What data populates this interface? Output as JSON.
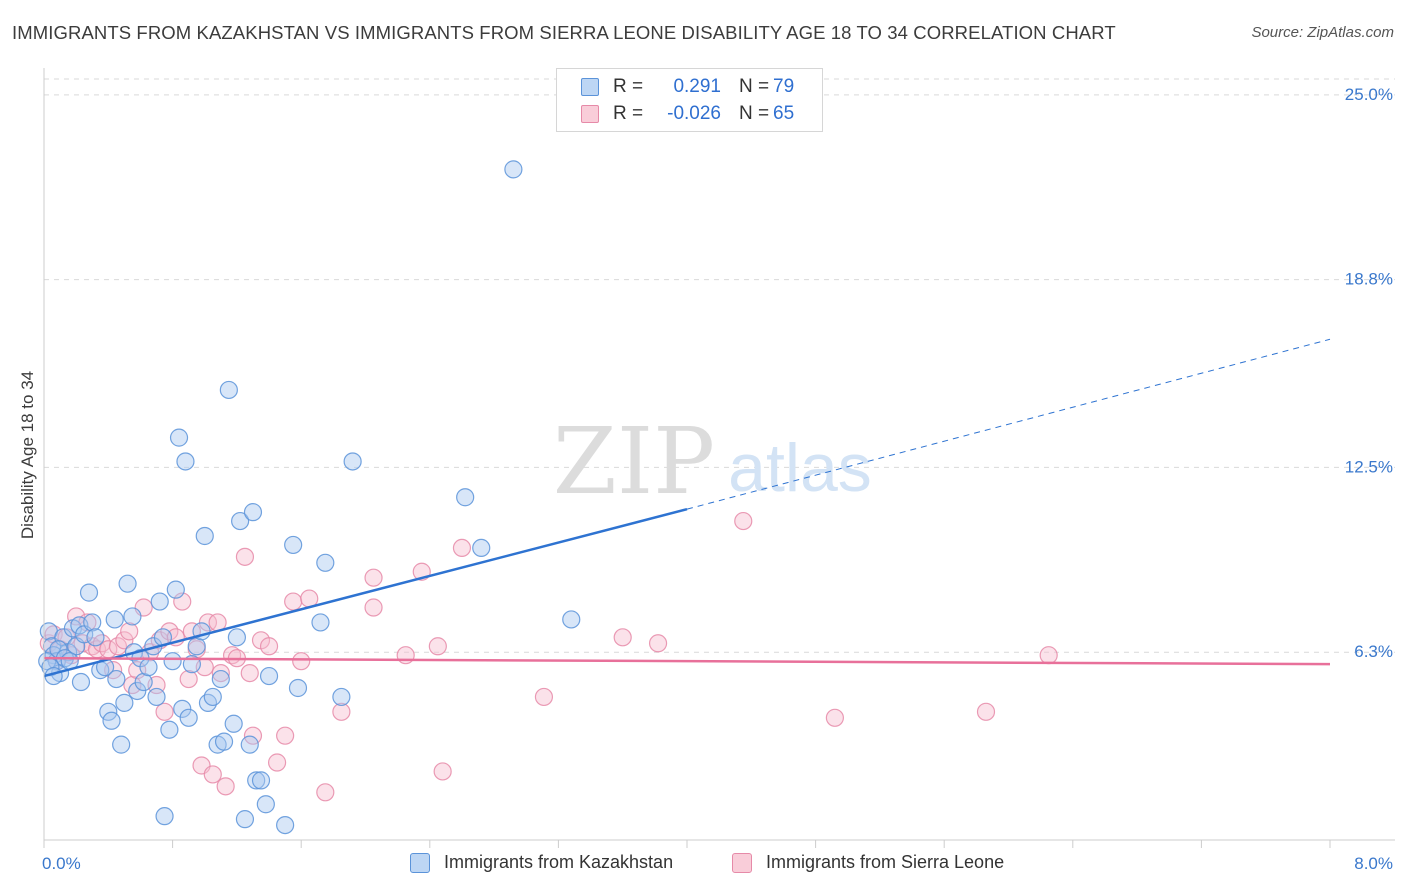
{
  "header": {
    "title": "IMMIGRANTS FROM KAZAKHSTAN VS IMMIGRANTS FROM SIERRA LEONE DISABILITY AGE 18 TO 34 CORRELATION CHART",
    "source": "Source: ZipAtlas.com"
  },
  "watermark": {
    "zip": "ZIP",
    "atlas": "atlas"
  },
  "legend_top": {
    "rows": [
      {
        "r_label": "R =",
        "r_value": "0.291",
        "n_label": "N =",
        "n_value": "79"
      },
      {
        "r_label": "R =",
        "r_value": "-0.026",
        "n_label": "N =",
        "n_value": "65"
      }
    ]
  },
  "legend_bottom": {
    "items": [
      "Immigrants from Kazakhstan",
      "Immigrants from Sierra Leone"
    ]
  },
  "colors": {
    "blue_fill": "#a9c8f0",
    "blue_stroke": "#5b93d9",
    "blue_line": "#2e73d1",
    "pink_fill": "#f6bfd0",
    "pink_stroke": "#e68aa8",
    "pink_line": "#e8709a",
    "tick_label": "#3a78cc",
    "grid": "#d9d9d9"
  },
  "chart_data": {
    "type": "scatter",
    "title": "IMMIGRANTS FROM KAZAKHSTAN VS IMMIGRANTS FROM SIERRA LEONE DISABILITY AGE 18 TO 34 CORRELATION CHART",
    "xlabel": "",
    "ylabel": "Disability Age 18 to 34",
    "xlim": [
      0,
      8
    ],
    "ylim": [
      0,
      25.7
    ],
    "x_tick_labels": [
      "0.0%",
      "8.0%"
    ],
    "y_ticks": [
      6.3,
      12.5,
      18.8,
      25.0
    ],
    "y_tick_labels": [
      "6.3%",
      "12.5%",
      "18.8%",
      "25.0%"
    ],
    "grid": true,
    "legend_position": "top-center",
    "series": [
      {
        "name": "Immigrants from Kazakhstan",
        "r": 0.291,
        "n": 79,
        "trend": {
          "x0": 0.0,
          "y0": 5.5,
          "x1": 4.0,
          "y1": 11.1,
          "dashed_to_x": 8.0,
          "dashed_to_y": 16.8
        },
        "points": [
          [
            0.03,
            7.0
          ],
          [
            0.05,
            6.5
          ],
          [
            0.06,
            6.2
          ],
          [
            0.08,
            6.0
          ],
          [
            0.1,
            5.6
          ],
          [
            0.12,
            6.8
          ],
          [
            0.15,
            6.3
          ],
          [
            0.18,
            7.1
          ],
          [
            0.2,
            6.5
          ],
          [
            0.22,
            7.2
          ],
          [
            0.25,
            6.9
          ],
          [
            0.23,
            5.3
          ],
          [
            0.28,
            8.3
          ],
          [
            0.3,
            7.3
          ],
          [
            0.32,
            6.8
          ],
          [
            0.35,
            5.7
          ],
          [
            0.38,
            5.8
          ],
          [
            0.4,
            4.3
          ],
          [
            0.42,
            4.0
          ],
          [
            0.44,
            7.4
          ],
          [
            0.45,
            5.4
          ],
          [
            0.48,
            3.2
          ],
          [
            0.5,
            4.6
          ],
          [
            0.52,
            8.6
          ],
          [
            0.55,
            7.5
          ],
          [
            0.56,
            6.3
          ],
          [
            0.58,
            5.0
          ],
          [
            0.6,
            6.1
          ],
          [
            0.62,
            5.3
          ],
          [
            0.65,
            5.8
          ],
          [
            0.68,
            6.5
          ],
          [
            0.7,
            4.8
          ],
          [
            0.72,
            8.0
          ],
          [
            0.74,
            6.8
          ],
          [
            0.75,
            0.8
          ],
          [
            0.78,
            3.7
          ],
          [
            0.8,
            6.0
          ],
          [
            0.82,
            8.4
          ],
          [
            0.84,
            13.5
          ],
          [
            0.86,
            4.4
          ],
          [
            0.88,
            12.7
          ],
          [
            0.9,
            4.1
          ],
          [
            0.92,
            5.9
          ],
          [
            0.95,
            6.5
          ],
          [
            0.98,
            7.0
          ],
          [
            1.0,
            10.2
          ],
          [
            1.02,
            4.6
          ],
          [
            1.05,
            4.8
          ],
          [
            1.08,
            3.2
          ],
          [
            1.1,
            5.4
          ],
          [
            1.12,
            3.3
          ],
          [
            1.15,
            15.1
          ],
          [
            1.18,
            3.9
          ],
          [
            1.2,
            6.8
          ],
          [
            1.22,
            10.7
          ],
          [
            1.25,
            0.7
          ],
          [
            1.28,
            3.2
          ],
          [
            1.3,
            11.0
          ],
          [
            1.32,
            2.0
          ],
          [
            1.35,
            2.0
          ],
          [
            1.38,
            1.2
          ],
          [
            1.4,
            5.5
          ],
          [
            1.5,
            0.5
          ],
          [
            1.55,
            9.9
          ],
          [
            1.58,
            5.1
          ],
          [
            1.72,
            7.3
          ],
          [
            1.75,
            9.3
          ],
          [
            1.85,
            4.8
          ],
          [
            1.92,
            12.7
          ],
          [
            2.62,
            11.5
          ],
          [
            2.72,
            9.8
          ],
          [
            2.92,
            22.5
          ],
          [
            3.28,
            7.4
          ],
          [
            0.02,
            6.0
          ],
          [
            0.04,
            5.8
          ],
          [
            0.06,
            5.5
          ],
          [
            0.09,
            6.4
          ],
          [
            0.13,
            6.1
          ],
          [
            0.16,
            6.0
          ]
        ]
      },
      {
        "name": "Immigrants from Sierra Leone",
        "r": -0.026,
        "n": 65,
        "trend": {
          "x0": 0.0,
          "y0": 6.1,
          "x1": 8.0,
          "y1": 5.9
        },
        "points": [
          [
            0.03,
            6.6
          ],
          [
            0.06,
            6.9
          ],
          [
            0.1,
            6.4
          ],
          [
            0.14,
            6.8
          ],
          [
            0.17,
            6.2
          ],
          [
            0.2,
            7.5
          ],
          [
            0.24,
            6.6
          ],
          [
            0.27,
            7.3
          ],
          [
            0.3,
            6.5
          ],
          [
            0.33,
            6.4
          ],
          [
            0.36,
            6.6
          ],
          [
            0.4,
            6.4
          ],
          [
            0.43,
            5.7
          ],
          [
            0.46,
            6.5
          ],
          [
            0.5,
            6.7
          ],
          [
            0.53,
            7.0
          ],
          [
            0.55,
            5.2
          ],
          [
            0.58,
            5.7
          ],
          [
            0.62,
            7.8
          ],
          [
            0.66,
            6.3
          ],
          [
            0.7,
            5.2
          ],
          [
            0.72,
            6.7
          ],
          [
            0.75,
            4.3
          ],
          [
            0.78,
            7.0
          ],
          [
            0.82,
            6.8
          ],
          [
            0.86,
            8.0
          ],
          [
            0.9,
            5.4
          ],
          [
            0.92,
            7.0
          ],
          [
            0.95,
            6.4
          ],
          [
            0.98,
            2.5
          ],
          [
            1.0,
            5.8
          ],
          [
            1.02,
            7.3
          ],
          [
            1.05,
            2.2
          ],
          [
            1.08,
            7.3
          ],
          [
            1.1,
            5.6
          ],
          [
            1.13,
            1.8
          ],
          [
            1.17,
            6.2
          ],
          [
            1.2,
            6.1
          ],
          [
            1.25,
            9.5
          ],
          [
            1.28,
            5.6
          ],
          [
            1.3,
            3.5
          ],
          [
            1.35,
            6.7
          ],
          [
            1.4,
            6.5
          ],
          [
            1.45,
            2.6
          ],
          [
            1.5,
            3.5
          ],
          [
            1.55,
            8.0
          ],
          [
            1.6,
            6.0
          ],
          [
            1.65,
            8.1
          ],
          [
            1.75,
            1.6
          ],
          [
            1.85,
            4.3
          ],
          [
            2.05,
            8.8
          ],
          [
            2.05,
            7.8
          ],
          [
            2.25,
            6.2
          ],
          [
            2.35,
            9.0
          ],
          [
            2.45,
            6.5
          ],
          [
            2.48,
            2.3
          ],
          [
            2.6,
            9.8
          ],
          [
            3.11,
            4.8
          ],
          [
            3.6,
            6.8
          ],
          [
            3.82,
            6.6
          ],
          [
            4.35,
            10.7
          ],
          [
            4.92,
            4.1
          ],
          [
            5.86,
            4.3
          ],
          [
            6.25,
            6.2
          ],
          [
            0.08,
            6.0
          ]
        ]
      }
    ]
  }
}
